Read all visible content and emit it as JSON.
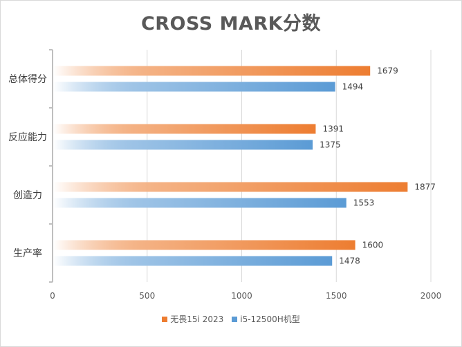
{
  "chart_data": {
    "type": "bar",
    "orientation": "horizontal",
    "title": "CROSS MARK分数",
    "categories": [
      "总体得分",
      "反应能力",
      "创造力",
      "生产率"
    ],
    "series": [
      {
        "name": "无畏15i 2023",
        "values": [
          1679,
          1391,
          1877,
          1600
        ],
        "color": "#ed7d31"
      },
      {
        "name": "i5-12500H机型",
        "values": [
          1494,
          1375,
          1553,
          1478
        ],
        "color": "#5b9bd5"
      }
    ],
    "x_ticks": [
      "0",
      "500",
      "1000",
      "1500",
      "2000"
    ],
    "xlim": [
      0,
      2000
    ],
    "grid": true,
    "legend_position": "bottom"
  }
}
